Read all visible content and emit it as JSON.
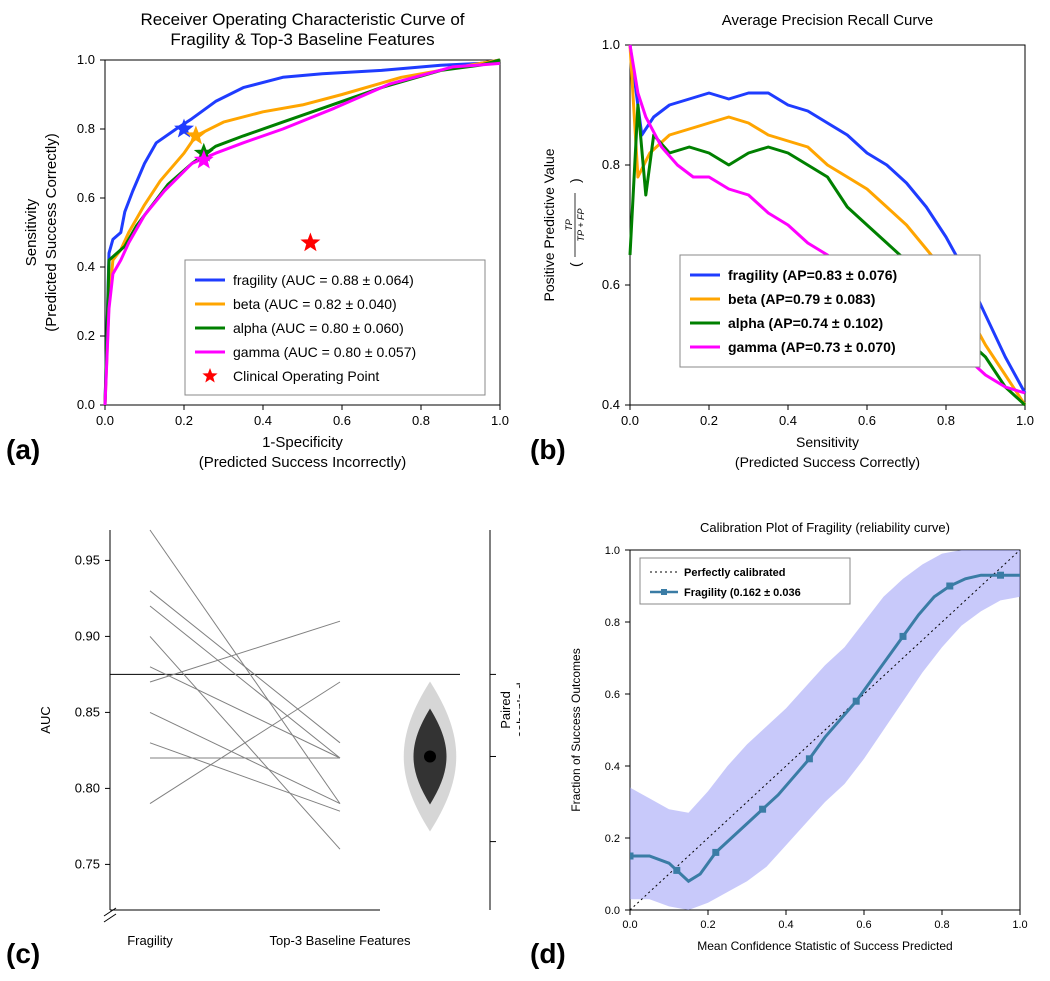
{
  "panel_a": {
    "title_line1": "Receiver Operating Characteristic Curve of",
    "title_line2": "Fragility & Top-3 Baseline Features",
    "xlabel_line1": "1-Specificity",
    "xlabel_line2": "(Predicted Success Incorrectly)",
    "ylabel_line1": "Sensitivity",
    "ylabel_line2": "(Predicted Success Correctly)",
    "xlim": [
      0.0,
      1.0
    ],
    "ylim": [
      0.0,
      1.0
    ],
    "xticks": [
      0.0,
      0.2,
      0.4,
      0.6,
      0.8,
      1.0
    ],
    "yticks": [
      0.0,
      0.2,
      0.4,
      0.6,
      0.8,
      1.0
    ],
    "legend_items": [
      {
        "label": "fragility (AUC = 0.88 ± 0.064)",
        "color": "#1f3cff",
        "type": "line"
      },
      {
        "label": "beta (AUC = 0.82 ± 0.040)",
        "color": "#ffa500",
        "type": "line"
      },
      {
        "label": "alpha (AUC = 0.80 ± 0.060)",
        "color": "#008000",
        "type": "line"
      },
      {
        "label": "gamma (AUC = 0.80 ± 0.057)",
        "color": "#ff00ff",
        "type": "line"
      },
      {
        "label": "Clinical Operating Point",
        "color": "#ff0000",
        "type": "star"
      }
    ],
    "series": {
      "fragility": {
        "color": "#1f3cff",
        "points": [
          [
            0,
            0
          ],
          [
            0.01,
            0.44
          ],
          [
            0.02,
            0.48
          ],
          [
            0.04,
            0.5
          ],
          [
            0.05,
            0.56
          ],
          [
            0.07,
            0.62
          ],
          [
            0.1,
            0.7
          ],
          [
            0.13,
            0.76
          ],
          [
            0.18,
            0.8
          ],
          [
            0.22,
            0.83
          ],
          [
            0.28,
            0.88
          ],
          [
            0.35,
            0.92
          ],
          [
            0.45,
            0.95
          ],
          [
            0.55,
            0.96
          ],
          [
            0.7,
            0.97
          ],
          [
            0.85,
            0.985
          ],
          [
            0.95,
            0.99
          ],
          [
            1.0,
            1.0
          ]
        ]
      },
      "beta": {
        "color": "#ffa500",
        "points": [
          [
            0,
            0
          ],
          [
            0.01,
            0.3
          ],
          [
            0.02,
            0.42
          ],
          [
            0.04,
            0.45
          ],
          [
            0.06,
            0.5
          ],
          [
            0.1,
            0.58
          ],
          [
            0.14,
            0.65
          ],
          [
            0.2,
            0.73
          ],
          [
            0.23,
            0.78
          ],
          [
            0.3,
            0.82
          ],
          [
            0.4,
            0.85
          ],
          [
            0.5,
            0.87
          ],
          [
            0.6,
            0.9
          ],
          [
            0.75,
            0.95
          ],
          [
            0.9,
            0.98
          ],
          [
            1.0,
            1.0
          ]
        ]
      },
      "alpha": {
        "color": "#008000",
        "points": [
          [
            0,
            0
          ],
          [
            0.01,
            0.42
          ],
          [
            0.02,
            0.43
          ],
          [
            0.05,
            0.46
          ],
          [
            0.08,
            0.52
          ],
          [
            0.12,
            0.58
          ],
          [
            0.16,
            0.64
          ],
          [
            0.22,
            0.7
          ],
          [
            0.28,
            0.75
          ],
          [
            0.35,
            0.78
          ],
          [
            0.45,
            0.82
          ],
          [
            0.55,
            0.86
          ],
          [
            0.7,
            0.92
          ],
          [
            0.85,
            0.97
          ],
          [
            0.95,
            0.985
          ],
          [
            1.0,
            1.0
          ]
        ]
      },
      "gamma": {
        "color": "#ff00ff",
        "points": [
          [
            0,
            0
          ],
          [
            0.01,
            0.28
          ],
          [
            0.02,
            0.38
          ],
          [
            0.04,
            0.42
          ],
          [
            0.06,
            0.47
          ],
          [
            0.1,
            0.55
          ],
          [
            0.15,
            0.62
          ],
          [
            0.22,
            0.7
          ],
          [
            0.28,
            0.73
          ],
          [
            0.35,
            0.76
          ],
          [
            0.45,
            0.8
          ],
          [
            0.58,
            0.86
          ],
          [
            0.72,
            0.93
          ],
          [
            0.88,
            0.98
          ],
          [
            0.94,
            0.985
          ],
          [
            1.0,
            0.99
          ]
        ]
      }
    },
    "star_markers": [
      {
        "x": 0.2,
        "y": 0.8,
        "color": "#1f3cff"
      },
      {
        "x": 0.23,
        "y": 0.78,
        "color": "#ffa500"
      },
      {
        "x": 0.25,
        "y": 0.73,
        "color": "#008000"
      },
      {
        "x": 0.25,
        "y": 0.71,
        "color": "#ff00ff"
      },
      {
        "x": 0.52,
        "y": 0.47,
        "color": "#ff0000"
      }
    ],
    "line_width": 3.0,
    "title_fontsize": 17,
    "label_fontsize": 15,
    "tick_fontsize": 13,
    "legend_fontsize": 14
  },
  "panel_b": {
    "title": "Average Precision Recall Curve",
    "xlabel_line1": "Sensitivity",
    "xlabel_line2": "(Predicted Success Correctly)",
    "ylabel_line1": "Positive Predictive Value",
    "ylabel_formula_top": "TP",
    "ylabel_formula_bot": "TP + FP",
    "xlim": [
      0.0,
      1.0
    ],
    "ylim": [
      0.4,
      1.0
    ],
    "xticks": [
      0.0,
      0.2,
      0.4,
      0.6,
      0.8,
      1.0
    ],
    "yticks": [
      0.4,
      0.6,
      0.8,
      1.0
    ],
    "legend_items": [
      {
        "label": "fragility (AP=0.83 ± 0.076)",
        "color": "#1f3cff"
      },
      {
        "label": "beta (AP=0.79 ± 0.083)",
        "color": "#ffa500"
      },
      {
        "label": "alpha (AP=0.74 ± 0.102)",
        "color": "#008000"
      },
      {
        "label": "gamma (AP=0.73 ± 0.070)",
        "color": "#ff00ff"
      }
    ],
    "series": {
      "fragility": {
        "color": "#1f3cff",
        "points": [
          [
            0,
            1.0
          ],
          [
            0.03,
            0.85
          ],
          [
            0.06,
            0.88
          ],
          [
            0.1,
            0.9
          ],
          [
            0.15,
            0.91
          ],
          [
            0.2,
            0.92
          ],
          [
            0.25,
            0.91
          ],
          [
            0.3,
            0.92
          ],
          [
            0.35,
            0.92
          ],
          [
            0.4,
            0.9
          ],
          [
            0.45,
            0.89
          ],
          [
            0.5,
            0.87
          ],
          [
            0.55,
            0.85
          ],
          [
            0.6,
            0.82
          ],
          [
            0.65,
            0.8
          ],
          [
            0.7,
            0.77
          ],
          [
            0.75,
            0.73
          ],
          [
            0.8,
            0.68
          ],
          [
            0.85,
            0.62
          ],
          [
            0.9,
            0.55
          ],
          [
            0.95,
            0.48
          ],
          [
            1.0,
            0.42
          ]
        ]
      },
      "beta": {
        "color": "#ffa500",
        "points": [
          [
            0,
            1.0
          ],
          [
            0.02,
            0.78
          ],
          [
            0.05,
            0.82
          ],
          [
            0.1,
            0.85
          ],
          [
            0.15,
            0.86
          ],
          [
            0.2,
            0.87
          ],
          [
            0.25,
            0.88
          ],
          [
            0.3,
            0.87
          ],
          [
            0.35,
            0.85
          ],
          [
            0.4,
            0.84
          ],
          [
            0.45,
            0.83
          ],
          [
            0.5,
            0.8
          ],
          [
            0.55,
            0.78
          ],
          [
            0.6,
            0.76
          ],
          [
            0.65,
            0.73
          ],
          [
            0.7,
            0.7
          ],
          [
            0.75,
            0.66
          ],
          [
            0.8,
            0.62
          ],
          [
            0.85,
            0.56
          ],
          [
            0.9,
            0.5
          ],
          [
            0.95,
            0.45
          ],
          [
            1.0,
            0.4
          ]
        ]
      },
      "alpha": {
        "color": "#008000",
        "points": [
          [
            0,
            0.65
          ],
          [
            0.02,
            0.9
          ],
          [
            0.04,
            0.75
          ],
          [
            0.06,
            0.85
          ],
          [
            0.1,
            0.82
          ],
          [
            0.15,
            0.83
          ],
          [
            0.2,
            0.82
          ],
          [
            0.25,
            0.8
          ],
          [
            0.3,
            0.82
          ],
          [
            0.35,
            0.83
          ],
          [
            0.4,
            0.82
          ],
          [
            0.45,
            0.8
          ],
          [
            0.5,
            0.78
          ],
          [
            0.55,
            0.73
          ],
          [
            0.6,
            0.7
          ],
          [
            0.65,
            0.67
          ],
          [
            0.7,
            0.64
          ],
          [
            0.75,
            0.6
          ],
          [
            0.8,
            0.55
          ],
          [
            0.85,
            0.51
          ],
          [
            0.9,
            0.48
          ],
          [
            0.95,
            0.43
          ],
          [
            1.0,
            0.4
          ]
        ]
      },
      "gamma": {
        "color": "#ff00ff",
        "points": [
          [
            0,
            1.0
          ],
          [
            0.02,
            0.92
          ],
          [
            0.04,
            0.88
          ],
          [
            0.08,
            0.83
          ],
          [
            0.12,
            0.8
          ],
          [
            0.16,
            0.78
          ],
          [
            0.2,
            0.78
          ],
          [
            0.25,
            0.76
          ],
          [
            0.3,
            0.75
          ],
          [
            0.35,
            0.72
          ],
          [
            0.4,
            0.7
          ],
          [
            0.45,
            0.67
          ],
          [
            0.5,
            0.65
          ],
          [
            0.55,
            0.62
          ],
          [
            0.6,
            0.6
          ],
          [
            0.65,
            0.57
          ],
          [
            0.7,
            0.55
          ],
          [
            0.75,
            0.52
          ],
          [
            0.8,
            0.5
          ],
          [
            0.85,
            0.48
          ],
          [
            0.9,
            0.45
          ],
          [
            0.95,
            0.43
          ],
          [
            1.0,
            0.42
          ]
        ]
      }
    },
    "line_width": 3.0,
    "title_fontsize": 15,
    "label_fontsize": 14,
    "tick_fontsize": 13,
    "legend_fontsize": 14
  },
  "panel_c": {
    "ylabel": "AUC",
    "right_ylabel_line1": "Paired",
    "right_ylabel_line2": "cohen's d",
    "ylim": [
      0.72,
      0.97
    ],
    "yticks": [
      0.75,
      0.8,
      0.85,
      0.9,
      0.95
    ],
    "xticks": [
      "Fragility",
      "Top-3 Baseline Features"
    ],
    "paired_data": [
      [
        0.97,
        0.79
      ],
      [
        0.93,
        0.83
      ],
      [
        0.92,
        0.82
      ],
      [
        0.9,
        0.76
      ],
      [
        0.88,
        0.82
      ],
      [
        0.87,
        0.91
      ],
      [
        0.85,
        0.79
      ],
      [
        0.83,
        0.785
      ],
      [
        0.82,
        0.82
      ],
      [
        0.79,
        0.87
      ]
    ],
    "ref_line_y": 0.875,
    "effect_mean": 0.821,
    "effect_violin_color": "#888888",
    "line_color": "#808080",
    "text_fontsize": 13
  },
  "panel_d": {
    "title": "Calibration Plot of Fragility (reliability curve)",
    "xlabel": "Mean Confidence Statistic of Success Predicted",
    "ylabel": "Fraction of Success Outcomes",
    "xlim": [
      0.0,
      1.0
    ],
    "ylim": [
      0.0,
      1.0
    ],
    "xticks": [
      0.0,
      0.2,
      0.4,
      0.6,
      0.8,
      1.0
    ],
    "yticks": [
      0.0,
      0.2,
      0.4,
      0.6,
      0.8,
      1.0
    ],
    "legend_items": [
      {
        "label": "Perfectly calibrated",
        "color": "#000000",
        "type": "dotted"
      },
      {
        "label": "Fragility (0.162 ± 0.036",
        "color": "#3a7ca5",
        "type": "line-marker"
      }
    ],
    "band_color": "#9a9cf5",
    "line_color": "#3a7ca5",
    "fragility_points": [
      [
        0,
        0.15
      ],
      [
        0.05,
        0.15
      ],
      [
        0.1,
        0.13
      ],
      [
        0.12,
        0.11
      ],
      [
        0.15,
        0.08
      ],
      [
        0.18,
        0.1
      ],
      [
        0.22,
        0.16
      ],
      [
        0.26,
        0.2
      ],
      [
        0.3,
        0.24
      ],
      [
        0.34,
        0.28
      ],
      [
        0.38,
        0.32
      ],
      [
        0.42,
        0.37
      ],
      [
        0.46,
        0.42
      ],
      [
        0.5,
        0.48
      ],
      [
        0.54,
        0.53
      ],
      [
        0.58,
        0.58
      ],
      [
        0.62,
        0.64
      ],
      [
        0.66,
        0.7
      ],
      [
        0.7,
        0.76
      ],
      [
        0.74,
        0.82
      ],
      [
        0.78,
        0.87
      ],
      [
        0.82,
        0.9
      ],
      [
        0.86,
        0.92
      ],
      [
        0.9,
        0.93
      ],
      [
        0.95,
        0.93
      ],
      [
        1.0,
        0.93
      ]
    ],
    "band_upper": [
      [
        0,
        0.34
      ],
      [
        0.05,
        0.31
      ],
      [
        0.1,
        0.28
      ],
      [
        0.15,
        0.27
      ],
      [
        0.2,
        0.33
      ],
      [
        0.25,
        0.4
      ],
      [
        0.3,
        0.46
      ],
      [
        0.35,
        0.51
      ],
      [
        0.4,
        0.56
      ],
      [
        0.45,
        0.62
      ],
      [
        0.5,
        0.68
      ],
      [
        0.55,
        0.73
      ],
      [
        0.6,
        0.8
      ],
      [
        0.65,
        0.87
      ],
      [
        0.7,
        0.92
      ],
      [
        0.75,
        0.96
      ],
      [
        0.8,
        0.99
      ],
      [
        0.85,
        1.0
      ],
      [
        0.9,
        1.0
      ],
      [
        0.95,
        1.0
      ],
      [
        1.0,
        1.0
      ]
    ],
    "band_lower": [
      [
        0,
        0.03
      ],
      [
        0.05,
        0.03
      ],
      [
        0.1,
        0.01
      ],
      [
        0.15,
        0.0
      ],
      [
        0.2,
        0.02
      ],
      [
        0.25,
        0.05
      ],
      [
        0.3,
        0.08
      ],
      [
        0.35,
        0.12
      ],
      [
        0.4,
        0.18
      ],
      [
        0.45,
        0.24
      ],
      [
        0.5,
        0.3
      ],
      [
        0.55,
        0.35
      ],
      [
        0.6,
        0.42
      ],
      [
        0.65,
        0.5
      ],
      [
        0.7,
        0.58
      ],
      [
        0.75,
        0.66
      ],
      [
        0.8,
        0.73
      ],
      [
        0.85,
        0.79
      ],
      [
        0.9,
        0.83
      ],
      [
        0.95,
        0.86
      ],
      [
        1.0,
        0.87
      ]
    ],
    "title_fontsize": 13,
    "label_fontsize": 12,
    "tick_fontsize": 11,
    "legend_fontsize": 11
  },
  "panel_labels": {
    "a": "(a)",
    "b": "(b)",
    "c": "(c)",
    "d": "(d)"
  }
}
